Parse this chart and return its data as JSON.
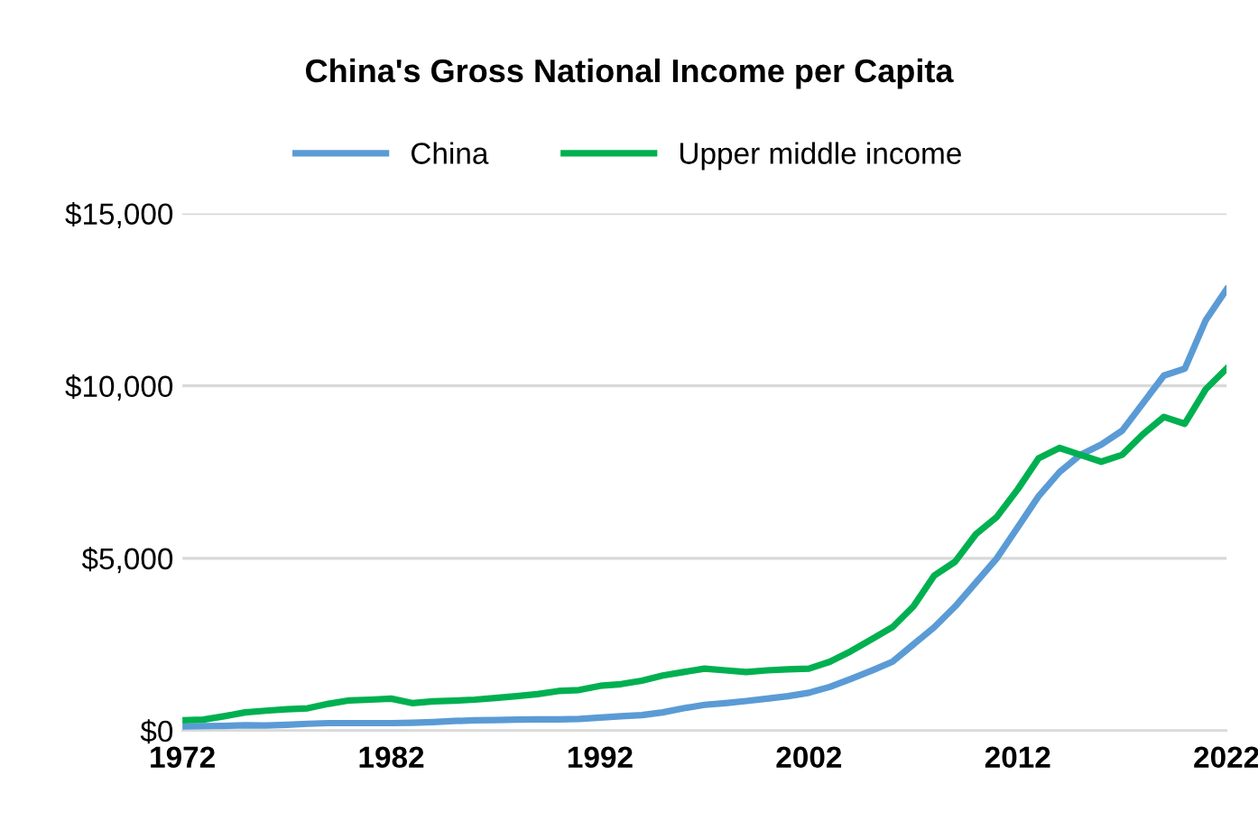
{
  "chart_data": {
    "type": "line",
    "title": "China's Gross National Income per Capita",
    "x": [
      1972,
      1973,
      1974,
      1975,
      1976,
      1977,
      1978,
      1979,
      1980,
      1981,
      1982,
      1983,
      1984,
      1985,
      1986,
      1987,
      1988,
      1989,
      1990,
      1991,
      1992,
      1993,
      1994,
      1995,
      1996,
      1997,
      1998,
      1999,
      2000,
      2001,
      2002,
      2003,
      2004,
      2005,
      2006,
      2007,
      2008,
      2009,
      2010,
      2011,
      2012,
      2013,
      2014,
      2015,
      2016,
      2017,
      2018,
      2019,
      2020,
      2021,
      2022
    ],
    "series": [
      {
        "name": "China",
        "color": "#5b9bd5",
        "values": [
          120,
          130,
          140,
          160,
          150,
          170,
          200,
          220,
          220,
          220,
          220,
          230,
          250,
          280,
          300,
          310,
          320,
          330,
          330,
          340,
          380,
          420,
          450,
          530,
          650,
          750,
          800,
          860,
          930,
          1000,
          1100,
          1270,
          1500,
          1740,
          2000,
          2500,
          3000,
          3600,
          4300,
          5000,
          5900,
          6800,
          7500,
          8000,
          8300,
          8700,
          9500,
          10300,
          10500,
          11900,
          12800
        ]
      },
      {
        "name": "Upper middle income",
        "color": "#00b050",
        "values": [
          300,
          320,
          420,
          530,
          580,
          620,
          650,
          780,
          880,
          900,
          930,
          800,
          850,
          870,
          900,
          950,
          1000,
          1060,
          1150,
          1180,
          1300,
          1350,
          1450,
          1600,
          1700,
          1800,
          1750,
          1700,
          1750,
          1780,
          1800,
          2000,
          2300,
          2650,
          3000,
          3600,
          4500,
          4900,
          5700,
          6200,
          7000,
          7900,
          8200,
          8000,
          7800,
          8000,
          8600,
          9100,
          8900,
          9900,
          10500
        ]
      }
    ],
    "xlim": [
      1972,
      2022
    ],
    "xticks": [
      1972,
      1982,
      1992,
      2002,
      2012,
      2022
    ],
    "ylim": [
      0,
      15000
    ],
    "yticks": [
      {
        "value": 0,
        "label": "$0"
      },
      {
        "value": 5000,
        "label": "$5,000"
      },
      {
        "value": 10000,
        "label": "$10,000"
      },
      {
        "value": 15000,
        "label": "$15,000"
      }
    ],
    "grid": "y",
    "legend": "top"
  }
}
